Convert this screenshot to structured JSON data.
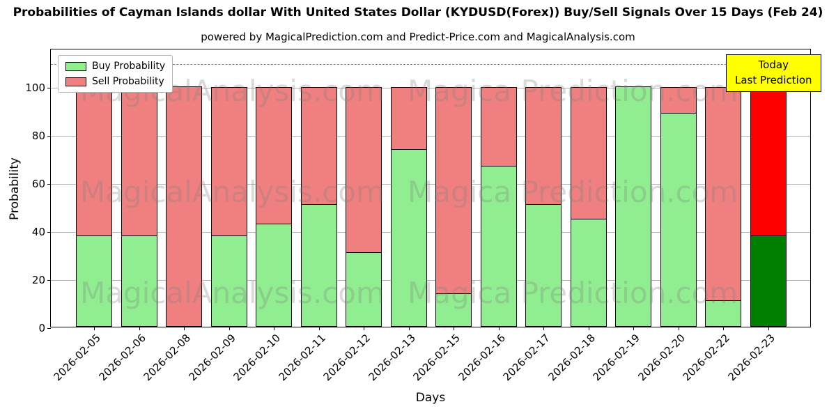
{
  "title": "Probabilities of Cayman Islands dollar With United States Dollar (KYDUSD(Forex)) Buy/Sell Signals Over 15 Days (Feb 24)",
  "subtitle": "powered by MagicalPrediction.com and Predict-Price.com and MagicalAnalysis.com",
  "annotation": {
    "line1": "Today",
    "line2": "Last Prediction",
    "bg": "#FFFF00"
  },
  "watermark": {
    "left_text": "MagicalAnalysis.com",
    "right_text": "Magica Prediction.com"
  },
  "chart_data": {
    "type": "bar",
    "stacked": true,
    "title": "Probabilities of Cayman Islands dollar With United States Dollar (KYDUSD(Forex)) Buy/Sell Signals Over 15 Days (Feb 24)",
    "xlabel": "Days",
    "ylabel": "Probability",
    "ylim": [
      0,
      116
    ],
    "yticks": [
      0,
      20,
      40,
      60,
      80,
      100
    ],
    "dashed_line_y": 110,
    "grid": true,
    "legend_position": "upper left",
    "categories": [
      "2026-02-05",
      "2026-02-06",
      "2026-02-08",
      "2026-02-09",
      "2026-02-10",
      "2026-02-11",
      "2026-02-12",
      "2026-02-13",
      "2026-02-15",
      "2026-02-16",
      "2026-02-17",
      "2026-02-18",
      "2026-02-19",
      "2026-02-20",
      "2026-02-22",
      "2026-02-23"
    ],
    "series": [
      {
        "name": "Buy Probability",
        "color": "#90EE90",
        "today_color": "#008000",
        "values": [
          38,
          38,
          0,
          38,
          43,
          51,
          31,
          74,
          14,
          67,
          51,
          45,
          100,
          89,
          11,
          38
        ]
      },
      {
        "name": "Sell Probability",
        "color": "#F08080",
        "today_color": "#FF0000",
        "values": [
          62,
          62,
          100,
          62,
          57,
          49,
          69,
          26,
          86,
          33,
          49,
          55,
          0,
          11,
          89,
          62
        ]
      }
    ]
  }
}
